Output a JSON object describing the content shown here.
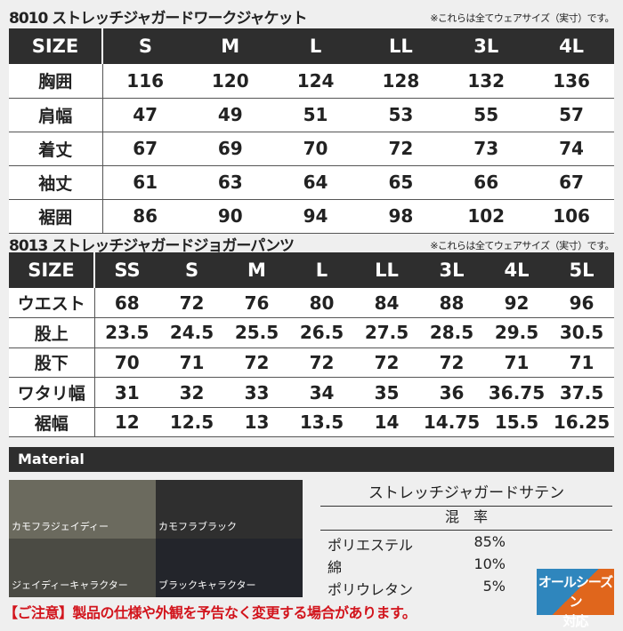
{
  "jacket": {
    "title": "8010 ストレッチジャガードワークジャケット",
    "note": "※これらは全てウェアサイズ（実寸）です。",
    "header": [
      "SIZE",
      "S",
      "M",
      "L",
      "LL",
      "3L",
      "4L"
    ],
    "rows": [
      [
        "胸囲",
        "116",
        "120",
        "124",
        "128",
        "132",
        "136"
      ],
      [
        "肩幅",
        "47",
        "49",
        "51",
        "53",
        "55",
        "57"
      ],
      [
        "着丈",
        "67",
        "69",
        "70",
        "72",
        "73",
        "74"
      ],
      [
        "袖丈",
        "61",
        "63",
        "64",
        "65",
        "66",
        "67"
      ],
      [
        "裾囲",
        "86",
        "90",
        "94",
        "98",
        "102",
        "106"
      ]
    ]
  },
  "pants": {
    "title": "8013 ストレッチジャガードジョガーパンツ",
    "note": "※これらは全てウェアサイズ（実寸）です。",
    "header": [
      "SIZE",
      "SS",
      "S",
      "M",
      "L",
      "LL",
      "3L",
      "4L",
      "5L"
    ],
    "rows": [
      [
        "ウエスト",
        "68",
        "72",
        "76",
        "80",
        "84",
        "88",
        "92",
        "96"
      ],
      [
        "股上",
        "23.5",
        "24.5",
        "25.5",
        "26.5",
        "27.5",
        "28.5",
        "29.5",
        "30.5"
      ],
      [
        "股下",
        "70",
        "71",
        "72",
        "72",
        "72",
        "72",
        "71",
        "71"
      ],
      [
        "ワタリ幅",
        "31",
        "32",
        "33",
        "34",
        "35",
        "36",
        "36.75",
        "37.5"
      ],
      [
        "裾幅",
        "12",
        "12.5",
        "13",
        "13.5",
        "14",
        "14.75",
        "15.5",
        "16.25"
      ]
    ]
  },
  "material": {
    "heading": "Material",
    "swatches": [
      {
        "label": "カモフラジェイディー",
        "color": "#6b6a5e"
      },
      {
        "label": "カモフラブラック",
        "color": "#2f2f2f"
      },
      {
        "label": "ジェイディーキャラクター",
        "color": "#4b4b44"
      },
      {
        "label": "ブラックキャラクター",
        "color": "#23252b"
      }
    ],
    "fabric": "ストレッチジャガードサテン",
    "blend_label": "混　率",
    "composition": [
      {
        "name": "ポリエステル",
        "pct": "85%"
      },
      {
        "name": "綿",
        "pct": "10%"
      },
      {
        "name": "ポリウレタン",
        "pct": "5%"
      }
    ],
    "badge": [
      "オールシーズン",
      "対応"
    ]
  },
  "caution": "【ご注意】製品の仕様や外観を予告なく変更する場合があります。"
}
